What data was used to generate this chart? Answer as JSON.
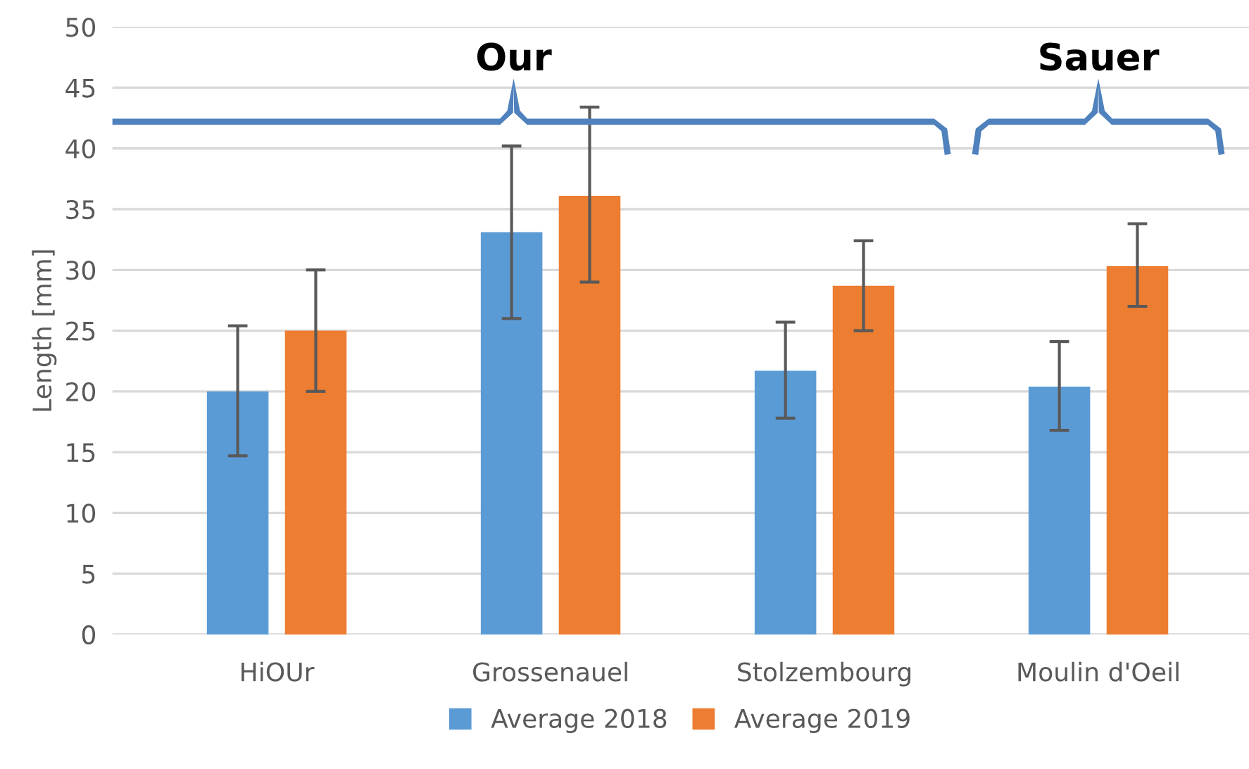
{
  "chart_data": {
    "type": "bar",
    "ylabel": "Length [mm]",
    "categories": [
      "HiOUr",
      "Grossenauel",
      "Stolzembourg",
      "Moulin d'Oeil"
    ],
    "series": [
      {
        "name": "Average 2018",
        "color": "#5b9bd5",
        "values": [
          20.0,
          33.1,
          21.7,
          20.4
        ],
        "errors": [
          [
            14.7,
            25.4
          ],
          [
            26.0,
            40.2
          ],
          [
            17.8,
            25.7
          ],
          [
            16.8,
            24.1
          ]
        ]
      },
      {
        "name": "Average 2019",
        "color": "#ed7d31",
        "values": [
          25.0,
          36.1,
          28.7,
          30.3
        ],
        "errors": [
          [
            20.0,
            30.0
          ],
          [
            29.0,
            43.4
          ],
          [
            25.0,
            32.4
          ],
          [
            27.0,
            33.8
          ]
        ]
      }
    ],
    "ylim": [
      0,
      50
    ],
    "yticks": [
      0,
      5,
      10,
      15,
      20,
      25,
      30,
      35,
      40,
      45,
      50
    ],
    "grid": "y",
    "legend": "bottom",
    "annotations": [
      "Our",
      "Sauer"
    ]
  }
}
